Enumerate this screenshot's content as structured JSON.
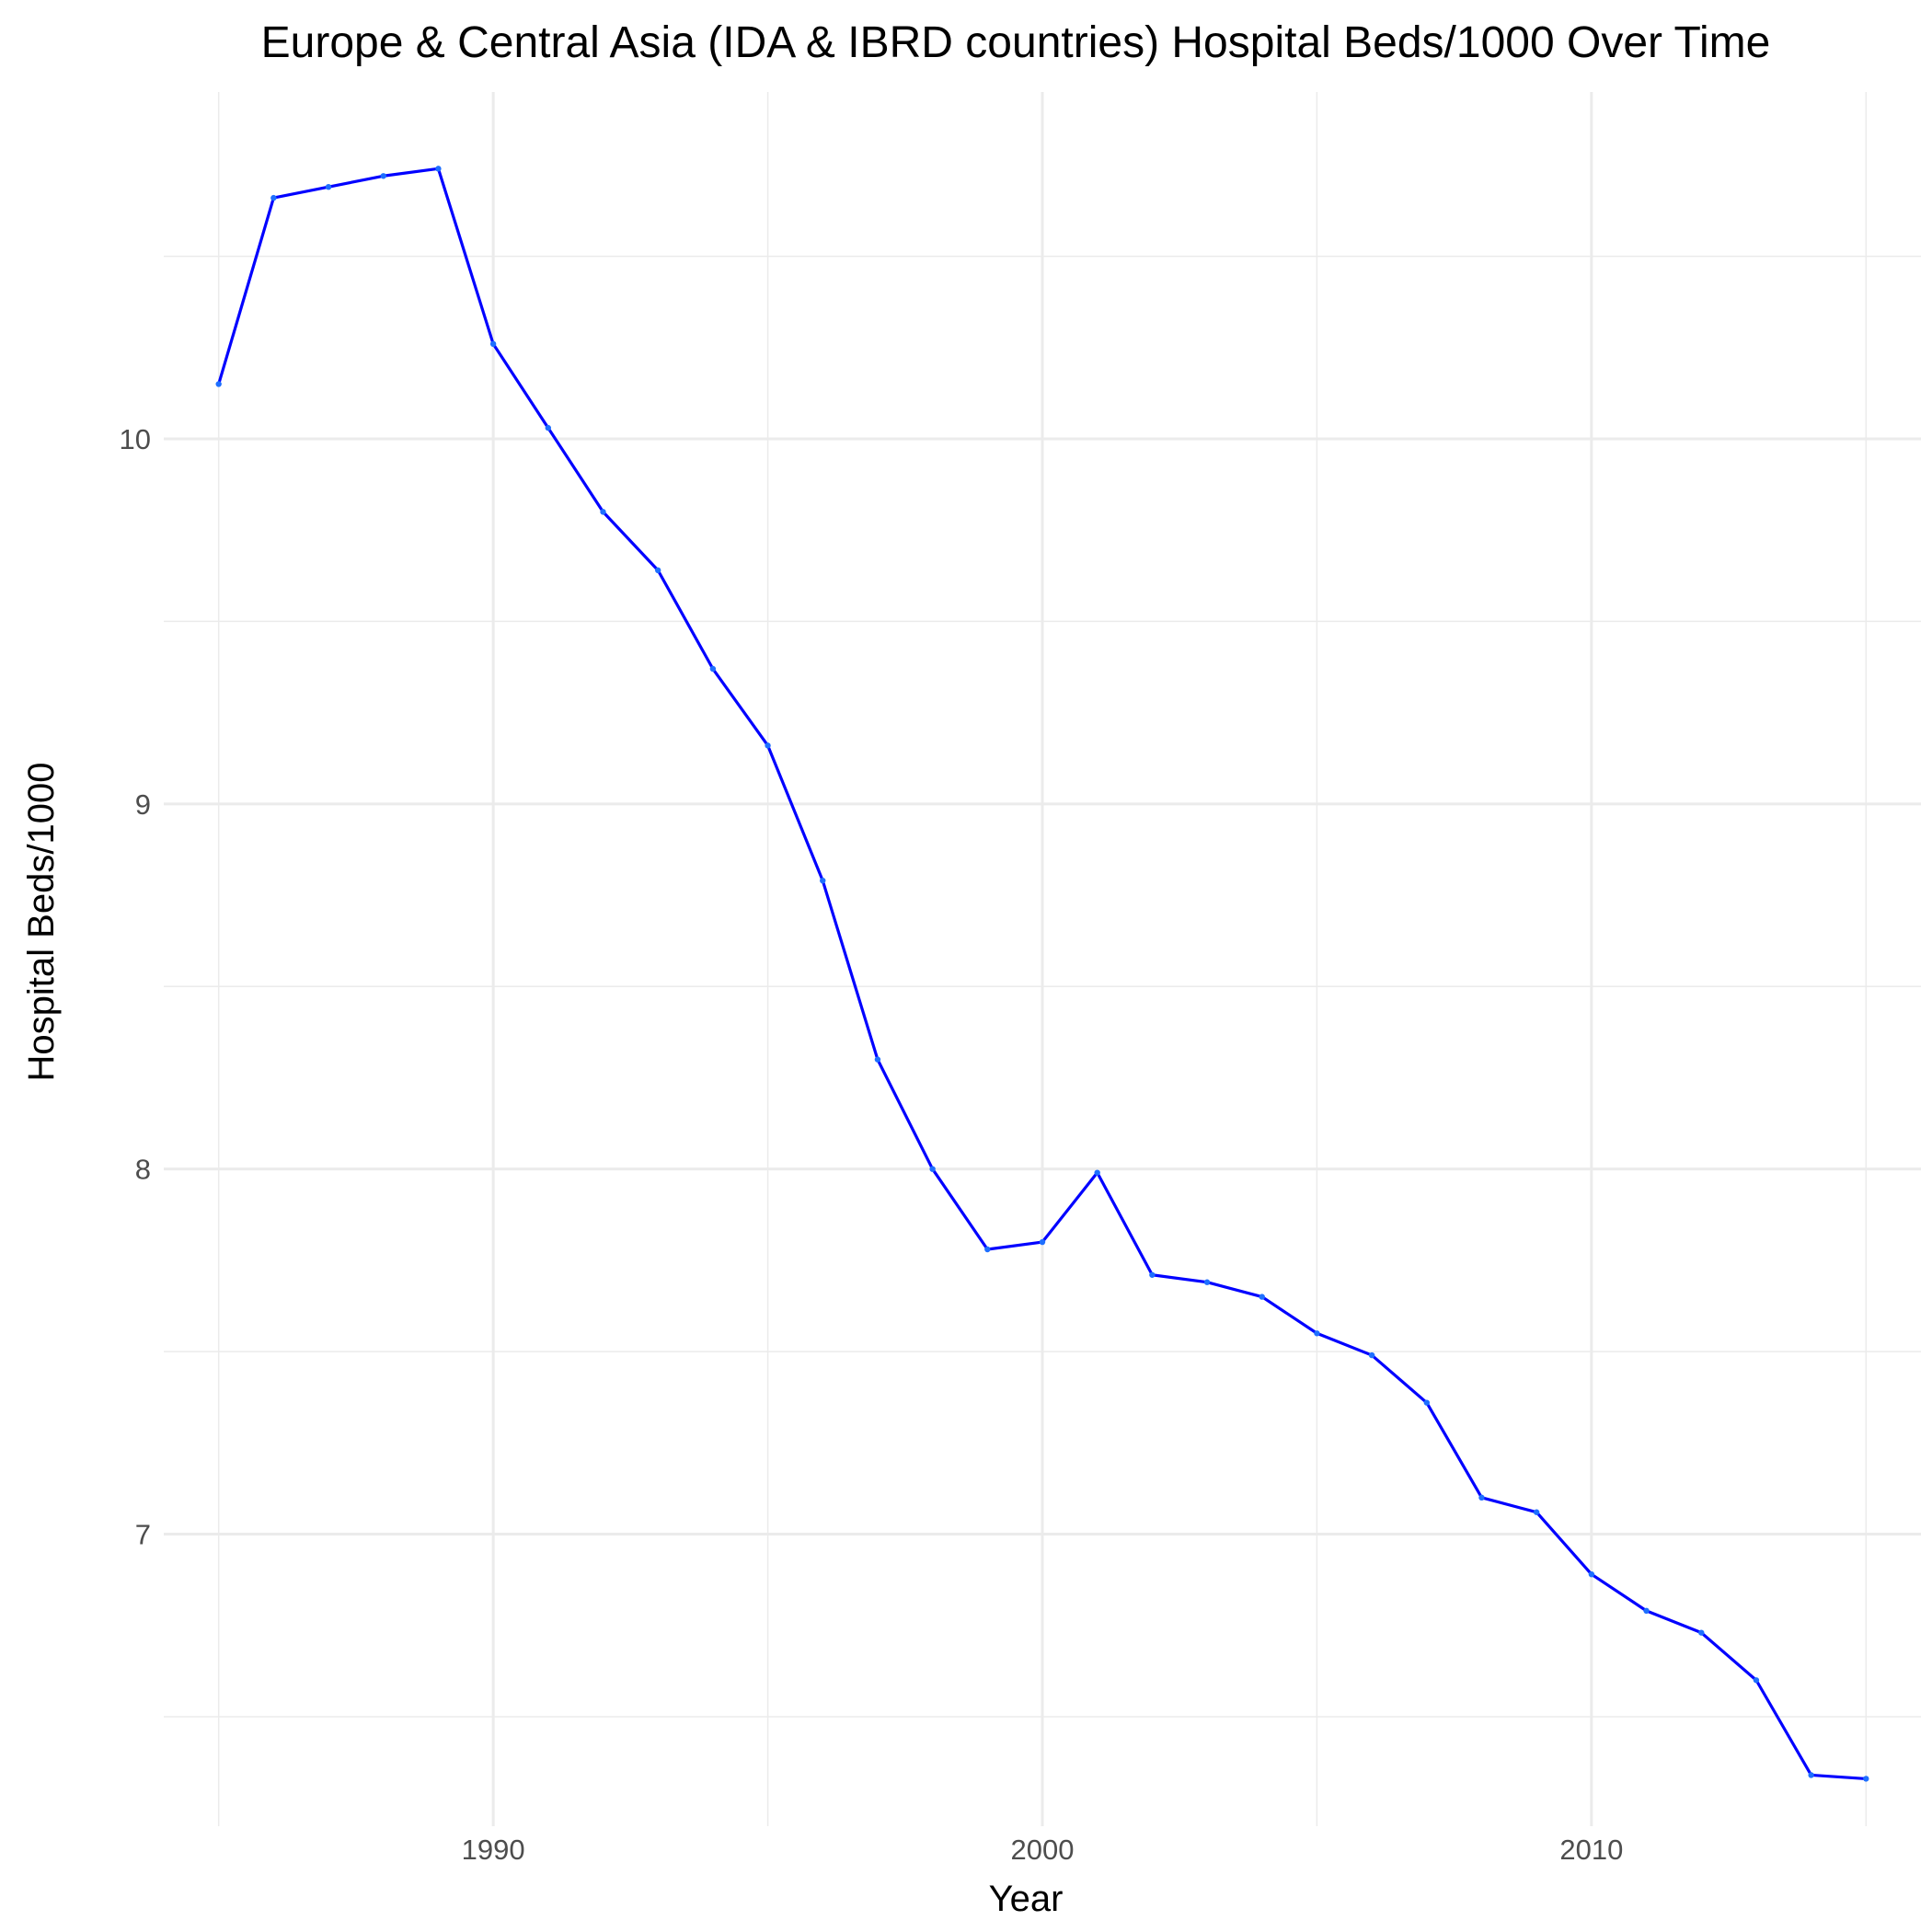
{
  "chart_data": {
    "type": "line",
    "title": "Europe & Central Asia (IDA & IBRD countries) Hospital Beds/1000 Over Time",
    "xlabel": "Year",
    "ylabel": "Hospital Beds/1000",
    "xlim": [
      1984.0,
      2016.0
    ],
    "ylim": [
      6.2,
      10.95
    ],
    "x_ticks": [
      1990,
      2000,
      2010
    ],
    "x_minor_ticks": [
      1985,
      1995,
      2005,
      2015
    ],
    "y_ticks": [
      7,
      8,
      9,
      10
    ],
    "y_minor_ticks": [
      6.5,
      7.5,
      8.5,
      9.5,
      10.5
    ],
    "grid": true,
    "legend": "none",
    "line_color": "#0000ff",
    "point_color": "#1e6fff",
    "series": [
      {
        "x": [
          1985,
          1986,
          1987,
          1988,
          1989,
          1990,
          1991,
          1992,
          1993,
          1994,
          1995,
          1996,
          1997,
          1998,
          1999,
          2000,
          2001,
          2002,
          2003,
          2004,
          2005,
          2006,
          2007,
          2008,
          2009,
          2010,
          2011,
          2012,
          2013,
          2014,
          2015
        ],
        "values": [
          10.15,
          10.66,
          10.69,
          10.72,
          10.74,
          10.26,
          10.03,
          9.8,
          9.64,
          9.37,
          9.16,
          8.79,
          8.3,
          8.0,
          7.78,
          7.8,
          7.99,
          7.71,
          7.69,
          7.65,
          7.55,
          7.49,
          7.36,
          7.1,
          7.06,
          6.89,
          6.79,
          6.73,
          6.6,
          6.34,
          6.33
        ]
      }
    ]
  }
}
